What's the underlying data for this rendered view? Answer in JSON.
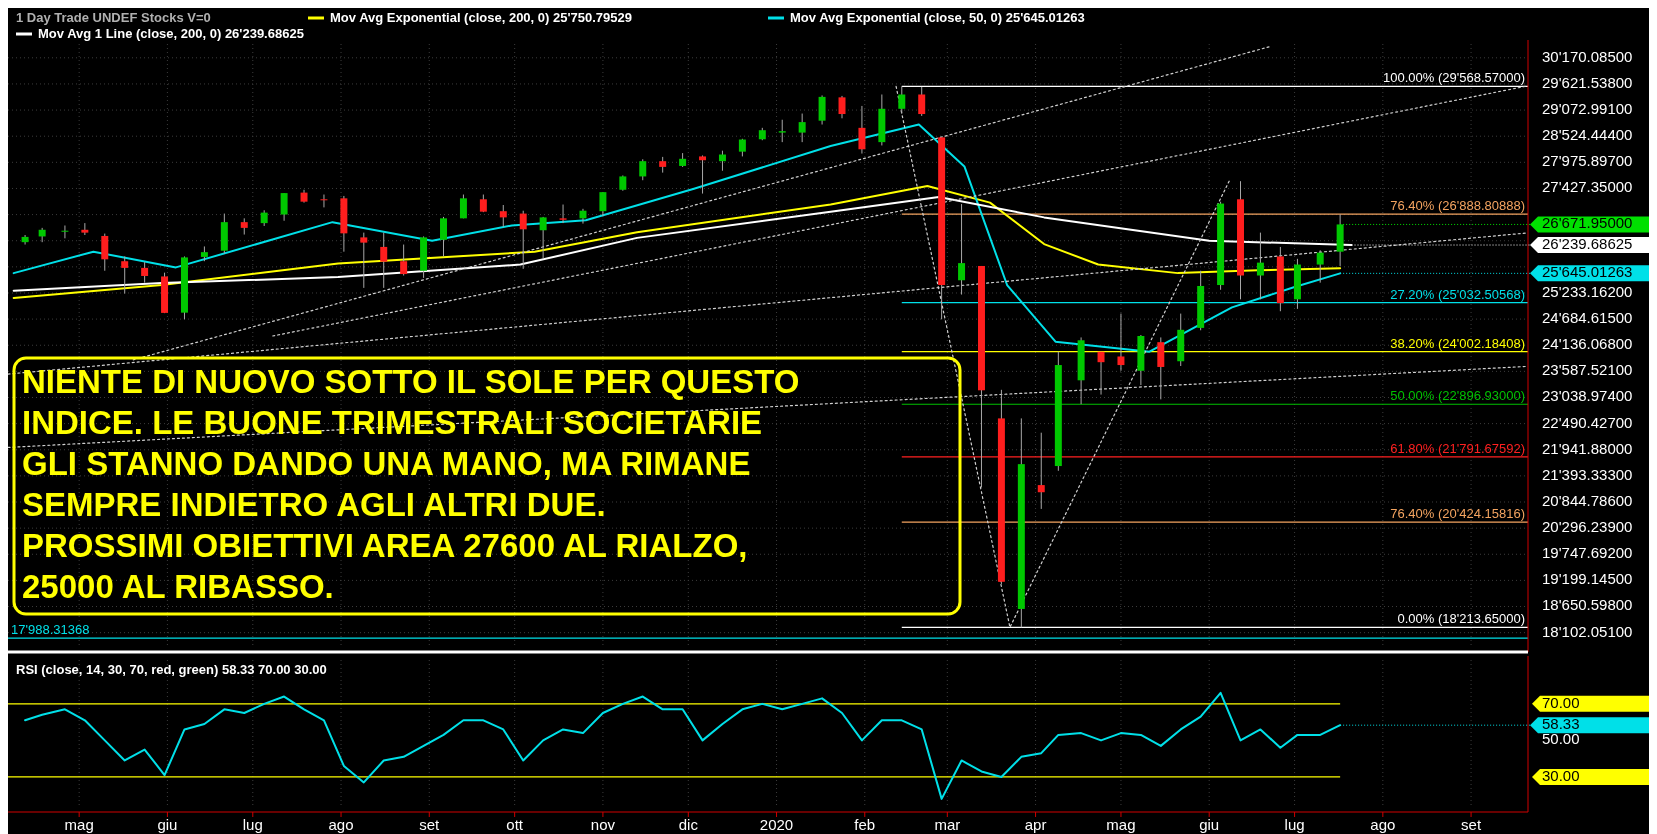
{
  "chart_data": [
    {
      "type": "candlestick",
      "subtitle": "1 Day   Trade  UNDEF  Stocks  V=0",
      "x": [
        "2019-04-12",
        "2019-04-18",
        "2019-04-26",
        "2019-05-03",
        "2019-05-10",
        "2019-05-17",
        "2019-05-24",
        "2019-05-31",
        "2019-06-07",
        "2019-06-14",
        "2019-06-21",
        "2019-06-28",
        "2019-07-05",
        "2019-07-12",
        "2019-07-19",
        "2019-07-26",
        "2019-08-02",
        "2019-08-09",
        "2019-08-16",
        "2019-08-23",
        "2019-08-30",
        "2019-09-06",
        "2019-09-13",
        "2019-09-20",
        "2019-09-27",
        "2019-10-04",
        "2019-10-11",
        "2019-10-18",
        "2019-10-25",
        "2019-11-01",
        "2019-11-08",
        "2019-11-15",
        "2019-11-22",
        "2019-11-29",
        "2019-12-06",
        "2019-12-13",
        "2019-12-20",
        "2019-12-27",
        "2020-01-03",
        "2020-01-10",
        "2020-01-17",
        "2020-01-24",
        "2020-01-31",
        "2020-02-07",
        "2020-02-14",
        "2020-02-21",
        "2020-02-28",
        "2020-03-06",
        "2020-03-13",
        "2020-03-20",
        "2020-03-27",
        "2020-04-03",
        "2020-04-09",
        "2020-04-17",
        "2020-04-24",
        "2020-05-01",
        "2020-05-08",
        "2020-05-15",
        "2020-05-22",
        "2020-05-29",
        "2020-06-05",
        "2020-06-12",
        "2020-06-19",
        "2020-06-26",
        "2020-07-02",
        "2020-07-10",
        "2020-07-17"
      ],
      "ohlc": [
        [
          26300,
          26450,
          26250,
          26410
        ],
        [
          26420,
          26600,
          26300,
          26560
        ],
        [
          26540,
          26650,
          26380,
          26540
        ],
        [
          26560,
          26700,
          26450,
          26500
        ],
        [
          26430,
          26480,
          25700,
          25940
        ],
        [
          25900,
          26000,
          25220,
          25760
        ],
        [
          25760,
          25880,
          25450,
          25590
        ],
        [
          25580,
          25660,
          24810,
          24815
        ],
        [
          24820,
          26000,
          24680,
          25980
        ],
        [
          25990,
          26210,
          25900,
          26090
        ],
        [
          26120,
          26900,
          26060,
          26720
        ],
        [
          26720,
          26800,
          26460,
          26600
        ],
        [
          26700,
          26970,
          26640,
          26920
        ],
        [
          26880,
          27330,
          26750,
          27330
        ],
        [
          27340,
          27400,
          27130,
          27150
        ],
        [
          27200,
          27300,
          27030,
          27190
        ],
        [
          27220,
          27270,
          26100,
          26485
        ],
        [
          26400,
          26500,
          25340,
          26290
        ],
        [
          26200,
          26500,
          25340,
          25890
        ],
        [
          25900,
          26250,
          25600,
          25630
        ],
        [
          25700,
          26420,
          25550,
          26400
        ],
        [
          26350,
          26830,
          26000,
          26800
        ],
        [
          26800,
          27300,
          26800,
          27220
        ],
        [
          27200,
          27300,
          26930,
          26940
        ],
        [
          26950,
          27080,
          26620,
          26820
        ],
        [
          26900,
          26960,
          25740,
          26570
        ],
        [
          26550,
          26830,
          25960,
          26820
        ],
        [
          26800,
          27090,
          26700,
          26770
        ],
        [
          26800,
          27000,
          26690,
          26960
        ],
        [
          26950,
          27350,
          26850,
          27350
        ],
        [
          27400,
          27700,
          27380,
          27680
        ],
        [
          27680,
          28040,
          27600,
          28000
        ],
        [
          28000,
          28090,
          27760,
          27880
        ],
        [
          27900,
          28170,
          27880,
          28050
        ],
        [
          28100,
          28120,
          27320,
          28020
        ],
        [
          28000,
          28220,
          27800,
          28140
        ],
        [
          28200,
          28470,
          28100,
          28455
        ],
        [
          28460,
          28700,
          28440,
          28650
        ],
        [
          28600,
          28870,
          28400,
          28630
        ],
        [
          28600,
          29000,
          28400,
          28820
        ],
        [
          28850,
          29380,
          28770,
          29350
        ],
        [
          29340,
          29370,
          28900,
          28990
        ],
        [
          28700,
          29160,
          28160,
          28250
        ],
        [
          28400,
          29400,
          28330,
          29100
        ],
        [
          29100,
          29568.57,
          29000,
          29400
        ],
        [
          29400,
          29560,
          28950,
          28990
        ],
        [
          28500,
          28500,
          24680,
          25400
        ],
        [
          25500,
          27100,
          25200,
          25860
        ],
        [
          25800,
          25800,
          21150,
          23190
        ],
        [
          22600,
          23200,
          19120,
          19170
        ],
        [
          18600,
          22600,
          18213.65,
          21640
        ],
        [
          21200,
          22300,
          20700,
          21050
        ],
        [
          21600,
          24000,
          21500,
          23720
        ],
        [
          23400,
          24300,
          22900,
          24240
        ],
        [
          24000,
          24000,
          23100,
          23780
        ],
        [
          23900,
          24800,
          23600,
          23720
        ],
        [
          23600,
          24350,
          23300,
          24330
        ],
        [
          24200,
          24300,
          23000,
          23680
        ],
        [
          23800,
          24800,
          23700,
          24460
        ],
        [
          24500,
          25700,
          24450,
          25380
        ],
        [
          25400,
          27150,
          25300,
          27110
        ],
        [
          27200,
          27580,
          25100,
          25600
        ],
        [
          25600,
          26500,
          25100,
          25870
        ],
        [
          26000,
          26200,
          24850,
          25020
        ],
        [
          25100,
          25950,
          24900,
          25830
        ],
        [
          25830,
          26130,
          25450,
          26080
        ],
        [
          26100,
          26880,
          25800,
          26671.95
        ]
      ],
      "series": [
        {
          "type": "line",
          "name": "Mov Avg Exponential   (close, 200, 0)  25'750.79529",
          "color": "#ffff00",
          "x": [
            "2019-04-08",
            "2019-05-30",
            "2019-07-31",
            "2019-10-08",
            "2019-11-13",
            "2020-01-20",
            "2020-02-23",
            "2020-03-16",
            "2020-04-04",
            "2020-04-23",
            "2020-05-21",
            "2020-06-18",
            "2020-07-17"
          ],
          "values": [
            25130,
            25400,
            25850,
            26100,
            26510,
            27090,
            27480,
            27130,
            26260,
            25830,
            25650,
            25710,
            25750.79529
          ]
        },
        {
          "type": "line",
          "name": "Mov Avg Exponential   (close, 50, 0)  25'645.01263",
          "color": "#00e0e8",
          "x": [
            "2019-04-08",
            "2019-05-06",
            "2019-06-04",
            "2019-07-29",
            "2019-09-02",
            "2019-09-30",
            "2019-10-26",
            "2019-12-03",
            "2020-01-20",
            "2020-02-20",
            "2020-03-07",
            "2020-03-22",
            "2020-04-08",
            "2020-05-11",
            "2020-06-09",
            "2020-07-01",
            "2020-07-17"
          ],
          "values": [
            25650,
            26100,
            25770,
            26720,
            26330,
            26650,
            26760,
            27420,
            28320,
            28770,
            27890,
            25400,
            24210,
            24000,
            24930,
            25360,
            25645.01263
          ]
        },
        {
          "type": "line",
          "name": "Mov Avg 1 Line   (close, 200, 0)  26'239.68625",
          "color": "#ffffff",
          "x": [
            "2019-04-08",
            "2019-05-30",
            "2019-07-31",
            "2019-10-03",
            "2019-11-13",
            "2020-01-20",
            "2020-02-27",
            "2020-04-04",
            "2020-06-01",
            "2020-07-21"
          ],
          "values": [
            25280,
            25440,
            25570,
            25830,
            26390,
            26940,
            27250,
            26820,
            26330,
            26239.68625
          ]
        },
        {
          "type": "line",
          "color": "#d0d0d0",
          "line_style": "dotted",
          "x": [
            "2019-04-06",
            "2020-09-20"
          ],
          "values": [
            23530,
            26490
          ]
        },
        {
          "type": "line",
          "color": "#d0d0d0",
          "line_style": "dotted",
          "x": [
            "2019-07-08",
            "2020-09-20"
          ],
          "values": [
            24330,
            29570
          ]
        },
        {
          "type": "line",
          "color": "#d0d0d0",
          "line_style": "dotted",
          "x": [
            "2019-05-20",
            "2020-06-22"
          ],
          "values": [
            23830,
            30400
          ]
        },
        {
          "type": "line",
          "color": "#d0d0d0",
          "line_style": "dotted",
          "x": [
            "2019-04-06",
            "2020-09-20"
          ],
          "values": [
            21990,
            23690
          ]
        },
        {
          "type": "line",
          "color": "#d0d0d0",
          "line_style": "dotted",
          "x": [
            "2020-02-12",
            "2020-03-23",
            "2020-06-08"
          ],
          "values": [
            29568.57,
            18213.65,
            27580
          ]
        }
      ],
      "xlim": [
        "2019-04-06",
        "2020-09-21"
      ],
      "ylim": [
        17780,
        30460
      ],
      "xticks": [
        {
          "value": "2019-05-01",
          "label": null
        },
        {
          "value": "2019-06-01",
          "label": null
        },
        {
          "value": "2019-07-01",
          "label": null
        },
        {
          "value": "2019-08-01",
          "label": null
        },
        {
          "value": "2019-09-01",
          "label": null
        },
        {
          "value": "2019-10-01",
          "label": null
        },
        {
          "value": "2019-11-01",
          "label": null
        },
        {
          "value": "2019-12-01",
          "label": null
        },
        {
          "value": "2020-01-01",
          "label": null
        },
        {
          "value": "2020-02-01",
          "label": null
        },
        {
          "value": "2020-03-01",
          "label": null
        },
        {
          "value": "2020-04-01",
          "label": null
        },
        {
          "value": "2020-05-01",
          "label": null
        },
        {
          "value": "2020-06-01",
          "label": null
        },
        {
          "value": "2020-07-01",
          "label": null
        },
        {
          "value": "2020-08-01",
          "label": null
        },
        {
          "value": "2020-09-01",
          "label": null
        }
      ],
      "yticks": [
        {
          "value": 18102.051,
          "label": "18'102.05100"
        },
        {
          "value": 18650.598,
          "label": "18'650.59800"
        },
        {
          "value": 19199.145,
          "label": "19'199.14500"
        },
        {
          "value": 19747.692,
          "label": "19'747.69200"
        },
        {
          "value": 20296.239,
          "label": "20'296.23900"
        },
        {
          "value": 20844.786,
          "label": "20'844.78600"
        },
        {
          "value": 21393.333,
          "label": "21'393.33300"
        },
        {
          "value": 21941.88,
          "label": "21'941.88000"
        },
        {
          "value": 22490.427,
          "label": "22'490.42700"
        },
        {
          "value": 23038.974,
          "label": "23'038.97400"
        },
        {
          "value": 23587.521,
          "label": "23'587.52100"
        },
        {
          "value": 24136.068,
          "label": "24'136.06800"
        },
        {
          "value": 24684.615,
          "label": "24'684.61500"
        },
        {
          "value": 25233.162,
          "label": "25'233.16200"
        },
        {
          "value": 25781.709,
          "label": null
        },
        {
          "value": 26330.256,
          "label": null
        },
        {
          "value": 26878.803,
          "label": null
        },
        {
          "value": 27427.35,
          "label": "27'427.35000"
        },
        {
          "value": 27975.897,
          "label": "27'975.89700"
        },
        {
          "value": 28524.444,
          "label": "28'524.44400"
        },
        {
          "value": 29072.991,
          "label": "29'072.99100"
        },
        {
          "value": 29621.538,
          "label": "29'621.53800"
        },
        {
          "value": 30170.085,
          "label": "30'170.08500"
        }
      ],
      "tick_labels": "y",
      "grid": true,
      "legend": "top left",
      "ref_lines": [
        {
          "axis": "y",
          "value": 29568.57,
          "label": "100.00% (29'568.57000)",
          "color": "#ffffff"
        },
        {
          "axis": "y",
          "value": 26888.80888,
          "label": "76.40% (26'888.80888)",
          "color": "#f4a460"
        },
        {
          "axis": "y",
          "value": 25032.50568,
          "label": "27.20% (25'032.50568)",
          "color": "#00e0e8"
        },
        {
          "axis": "y",
          "value": 24002.18408,
          "label": "38.20% (24'002.18408)",
          "color": "#ffff00"
        },
        {
          "axis": "y",
          "value": 22896.93,
          "label": "50.00% (22'896.93000)",
          "color": "#00c000"
        },
        {
          "axis": "y",
          "value": 21791.67592,
          "label": "61.80% (21'791.67592)",
          "color": "#ff2020"
        },
        {
          "axis": "y",
          "value": 20424.15816,
          "label": "76.40% (20'424.15816)",
          "color": "#f4a460"
        },
        {
          "axis": "y",
          "value": 18213.65,
          "label": "0.00% (18'213.65000)",
          "color": "#ffffff"
        },
        {
          "axis": "y",
          "value": 17988.31368,
          "label": "17'988.31368",
          "color": "#00e0e8"
        }
      ],
      "annotations": [
        "NIENTE DI NUOVO SOTTO IL SOLE PER QUESTO\nINDICE. LE BUONE TRIMESTRALI SOCIETARIE\nGLI STANNO DANDO UNA MANO, MA RIMANE\nSEMPRE INDIETRO AGLI ALTRI DUE.\nPROSSIMI OBIETTIVI AREA 27600 AL RIALZO,\n25000 AL RIBASSO.",
        {
          "text": "26'671.95000",
          "x": "2020-07-17",
          "y": 26671.95
        },
        {
          "text": "26'239.68625",
          "x": "2020-07-21",
          "y": 26239.68625
        },
        {
          "text": "25'645.01263",
          "x": "2020-07-17",
          "y": 25645.01263
        }
      ]
    },
    {
      "type": "line",
      "title": "RSI   (close, 14, 30, 70, red, green)  58.33  70.00  30.00",
      "x": [
        "2019-04-12",
        "2019-04-18",
        "2019-04-26",
        "2019-05-03",
        "2019-05-10",
        "2019-05-17",
        "2019-05-24",
        "2019-05-31",
        "2019-06-07",
        "2019-06-14",
        "2019-06-21",
        "2019-06-28",
        "2019-07-05",
        "2019-07-12",
        "2019-07-19",
        "2019-07-26",
        "2019-08-02",
        "2019-08-09",
        "2019-08-16",
        "2019-08-23",
        "2019-08-30",
        "2019-09-06",
        "2019-09-13",
        "2019-09-20",
        "2019-09-27",
        "2019-10-04",
        "2019-10-11",
        "2019-10-18",
        "2019-10-25",
        "2019-11-01",
        "2019-11-08",
        "2019-11-15",
        "2019-11-22",
        "2019-11-29",
        "2019-12-06",
        "2019-12-13",
        "2019-12-20",
        "2019-12-27",
        "2020-01-03",
        "2020-01-10",
        "2020-01-17",
        "2020-01-24",
        "2020-01-31",
        "2020-02-07",
        "2020-02-14",
        "2020-02-21",
        "2020-02-28",
        "2020-03-06",
        "2020-03-13",
        "2020-03-20",
        "2020-03-27",
        "2020-04-03",
        "2020-04-09",
        "2020-04-17",
        "2020-04-24",
        "2020-05-01",
        "2020-05-08",
        "2020-05-15",
        "2020-05-22",
        "2020-05-29",
        "2020-06-05",
        "2020-06-12",
        "2020-06-19",
        "2020-06-26",
        "2020-07-02",
        "2020-07-10",
        "2020-07-17"
      ],
      "series": [
        {
          "color": "#00e0e8",
          "values": [
            61,
            64,
            67,
            61,
            50,
            39,
            45,
            31,
            56,
            59,
            67,
            65,
            70,
            74,
            67,
            61,
            36,
            27,
            39,
            41,
            47,
            53,
            61,
            61,
            56,
            39,
            50,
            56,
            54,
            65,
            70,
            74,
            67,
            67,
            50,
            59,
            67,
            70,
            67,
            70,
            73,
            65,
            50,
            61,
            61,
            56,
            18,
            39,
            33,
            30,
            41,
            43,
            53,
            54,
            50,
            54,
            53,
            47,
            56,
            63,
            76,
            50,
            56,
            46,
            53,
            53,
            58.33
          ]
        }
      ],
      "xlim": [
        "2019-04-06",
        "2020-09-21"
      ],
      "ylim": [
        13,
        94
      ],
      "xticks": [
        {
          "value": "2019-05-01",
          "label": "mag"
        },
        {
          "value": "2019-06-01",
          "label": "giu"
        },
        {
          "value": "2019-07-01",
          "label": "lug"
        },
        {
          "value": "2019-08-01",
          "label": "ago"
        },
        {
          "value": "2019-09-01",
          "label": "set"
        },
        {
          "value": "2019-10-01",
          "label": "ott"
        },
        {
          "value": "2019-11-01",
          "label": "nov"
        },
        {
          "value": "2019-12-01",
          "label": "dic"
        },
        {
          "value": "2020-01-01",
          "label": "2020"
        },
        {
          "value": "2020-02-01",
          "label": "feb"
        },
        {
          "value": "2020-03-01",
          "label": "mar"
        },
        {
          "value": "2020-04-01",
          "label": "apr"
        },
        {
          "value": "2020-05-01",
          "label": "mag"
        },
        {
          "value": "2020-06-01",
          "label": "giu"
        },
        {
          "value": "2020-07-01",
          "label": "lug"
        },
        {
          "value": "2020-08-01",
          "label": "ago"
        },
        {
          "value": "2020-09-01",
          "label": "set"
        }
      ],
      "yticks": [
        {
          "value": 30,
          "label": "30.00"
        },
        {
          "value": 50,
          "label": "50.00"
        },
        {
          "value": 70,
          "label": "70.00"
        }
      ],
      "grid": "x",
      "ref_lines": [
        {
          "axis": "y",
          "value": 70,
          "color": "#ffff00"
        },
        {
          "axis": "y",
          "value": 30,
          "color": "#ffff00"
        }
      ],
      "annotations": [
        {
          "text": "58.33",
          "x": "2020-07-17",
          "y": 58.33
        }
      ]
    }
  ]
}
